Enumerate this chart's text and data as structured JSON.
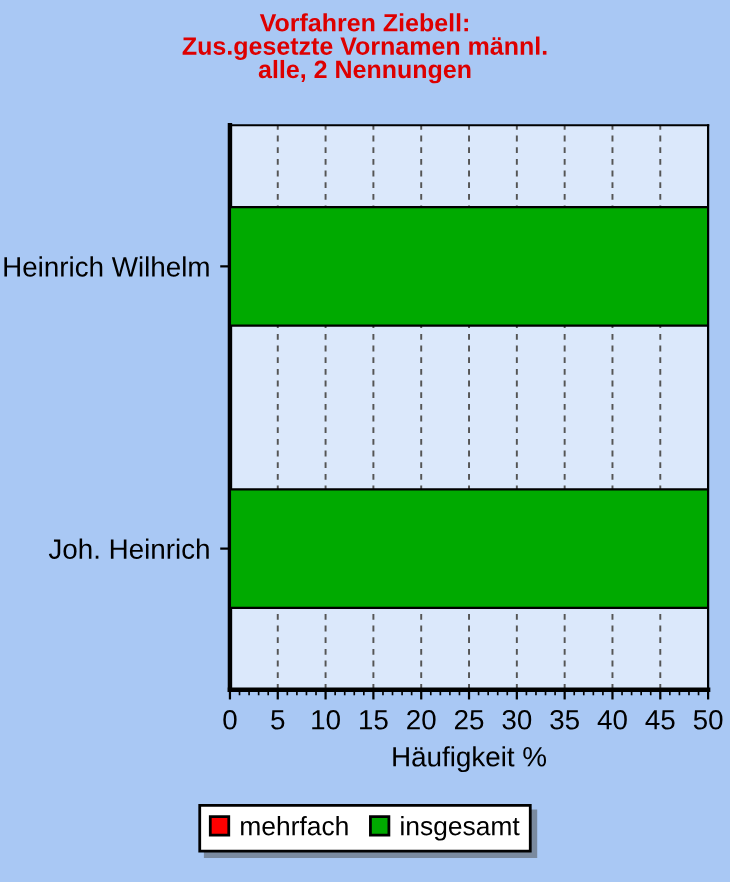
{
  "chart_data": {
    "type": "bar",
    "orientation": "horizontal",
    "stacked": true,
    "title": "Vorfahren Ziebell:\nZus.gesetzte Vornamen männl.\nalle, 2 Nennungen",
    "xlabel": "Häufigkeit %",
    "categories": [
      "Heinrich Wilhelm",
      "Joh. Heinrich"
    ],
    "series": [
      {
        "name": "mehrfach",
        "color": "#ff0000",
        "values": [
          0,
          0
        ]
      },
      {
        "name": "insgesamt",
        "color": "#00aa00",
        "values": [
          50,
          50
        ]
      }
    ],
    "xlim": [
      0,
      50
    ],
    "xticks": [
      0,
      5,
      10,
      15,
      20,
      25,
      30,
      35,
      40,
      45,
      50
    ],
    "grid": "x",
    "legend": "bottom"
  }
}
